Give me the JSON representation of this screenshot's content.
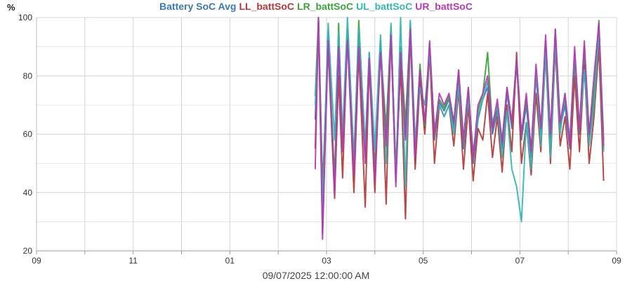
{
  "chart_data": {
    "type": "line",
    "ylabel": "%",
    "ylim": [
      20,
      100
    ],
    "yticks": [
      20,
      40,
      60,
      80,
      100
    ],
    "xlim": [
      0,
      72
    ],
    "xticks": [
      {
        "x": 0,
        "label": "09"
      },
      {
        "x": 6,
        "label": ""
      },
      {
        "x": 12,
        "label": "11"
      },
      {
        "x": 18,
        "label": ""
      },
      {
        "x": 24,
        "label": "01"
      },
      {
        "x": 30,
        "label": ""
      },
      {
        "x": 36,
        "label": "03"
      },
      {
        "x": 42,
        "label": ""
      },
      {
        "x": 48,
        "label": "05"
      },
      {
        "x": 54,
        "label": ""
      },
      {
        "x": 60,
        "label": "07"
      },
      {
        "x": 66,
        "label": ""
      },
      {
        "x": 72,
        "label": "09"
      }
    ],
    "xlabel": "09/07/2025 12:00:00 AM",
    "grid": true,
    "legend_position": "top-center",
    "series": [
      {
        "name": "Battery SoC Avg",
        "color": "#3a78b5",
        "x": [
          34.6,
          35.0,
          35.5,
          36.2,
          37.0,
          37.5,
          38.0,
          38.6,
          39.4,
          40.0,
          40.8,
          41.3,
          42.0,
          42.7,
          43.4,
          44.0,
          44.6,
          45.2,
          45.8,
          46.4,
          47.0,
          47.6,
          48.2,
          48.8,
          49.4,
          50.0,
          50.6,
          51.2,
          51.8,
          52.4,
          53.0,
          53.6,
          54.2,
          54.8,
          55.4,
          56.0,
          56.6,
          57.2,
          57.8,
          58.4,
          59.0,
          59.6,
          60.2,
          60.8,
          61.4,
          62.0,
          62.6,
          63.2,
          63.8,
          64.4,
          65.0,
          65.6,
          66.2,
          66.8,
          67.4,
          68.0,
          68.6,
          69.2,
          69.8,
          70.4
        ],
        "y": [
          65,
          99,
          38,
          95,
          42,
          88,
          55,
          96,
          48,
          92,
          52,
          86,
          45,
          90,
          58,
          93,
          44,
          85,
          60,
          98,
          50,
          80,
          62,
          90,
          58,
          71,
          68,
          72,
          62,
          80,
          55,
          73,
          50,
          65,
          72,
          76,
          60,
          68,
          55,
          74,
          62,
          84,
          58,
          70,
          52,
          80,
          60,
          92,
          58,
          96,
          62,
          70,
          55,
          85,
          60,
          88,
          58,
          72,
          95,
          55
        ]
      },
      {
        "name": "LL_battSoC",
        "color": "#b23a3a",
        "x": [
          34.6,
          35.0,
          35.5,
          36.2,
          37.0,
          37.5,
          38.0,
          38.6,
          39.4,
          40.0,
          40.8,
          41.3,
          42.0,
          42.7,
          43.4,
          44.0,
          44.6,
          45.2,
          45.8,
          46.4,
          47.0,
          47.6,
          48.2,
          48.8,
          49.4,
          50.0,
          50.6,
          51.2,
          51.8,
          52.4,
          53.0,
          53.6,
          54.2,
          54.8,
          55.4,
          56.0,
          56.6,
          57.2,
          57.8,
          58.4,
          59.0,
          59.6,
          60.2,
          60.8,
          61.4,
          62.0,
          62.6,
          63.2,
          63.8,
          64.4,
          65.0,
          65.6,
          66.2,
          66.8,
          67.4,
          68.0,
          68.6,
          69.2,
          69.8,
          70.4
        ],
        "y": [
          55,
          100,
          42,
          90,
          38,
          80,
          45,
          94,
          40,
          88,
          35,
          84,
          40,
          92,
          36,
          96,
          48,
          83,
          31,
          95,
          48,
          78,
          60,
          88,
          50,
          70,
          66,
          70,
          56,
          75,
          48,
          70,
          44,
          62,
          58,
          74,
          52,
          66,
          47,
          70,
          54,
          88,
          50,
          64,
          46,
          74,
          54,
          88,
          50,
          90,
          56,
          66,
          48,
          80,
          54,
          84,
          50,
          66,
          90,
          44
        ]
      },
      {
        "name": "LR_battSoC",
        "color": "#3aa33a",
        "x": [
          34.6,
          35.0,
          35.5,
          36.2,
          37.0,
          37.5,
          38.0,
          38.6,
          39.4,
          40.0,
          40.8,
          41.3,
          42.0,
          42.7,
          43.4,
          44.0,
          44.6,
          45.2,
          45.8,
          46.4,
          47.0,
          47.6,
          48.2,
          48.8,
          49.4,
          50.0,
          50.6,
          51.2,
          51.8,
          52.4,
          53.0,
          53.6,
          54.2,
          54.8,
          55.4,
          56.0,
          56.6,
          57.2,
          57.8,
          58.4,
          59.0,
          59.6,
          60.2,
          60.8,
          61.4,
          62.0,
          62.6,
          63.2,
          63.8,
          64.4,
          65.0,
          65.6,
          66.2,
          66.8,
          67.4,
          68.0,
          68.6,
          69.2,
          69.8,
          70.4
        ],
        "y": [
          73,
          100,
          26,
          92,
          45,
          98,
          56,
          94,
          50,
          99,
          55,
          88,
          48,
          90,
          62,
          97,
          47,
          90,
          64,
          97,
          55,
          84,
          63,
          91,
          60,
          72,
          69,
          73,
          64,
          82,
          58,
          76,
          52,
          68,
          74,
          88,
          62,
          70,
          58,
          76,
          64,
          86,
          60,
          72,
          55,
          82,
          62,
          90,
          60,
          94,
          64,
          72,
          57,
          86,
          62,
          90,
          60,
          75,
          99,
          58
        ]
      },
      {
        "name": "UL_battSoC",
        "color": "#33b5b5",
        "x": [
          34.6,
          35.0,
          35.5,
          36.2,
          37.0,
          37.5,
          38.0,
          38.6,
          39.4,
          40.0,
          40.8,
          41.3,
          42.0,
          42.7,
          43.4,
          44.0,
          44.6,
          45.2,
          45.8,
          46.4,
          47.0,
          47.6,
          48.2,
          48.8,
          49.4,
          50.0,
          50.6,
          51.2,
          51.8,
          52.4,
          53.0,
          53.6,
          54.2,
          54.8,
          55.4,
          56.0,
          56.6,
          57.2,
          57.8,
          58.4,
          59.0,
          59.6,
          60.2,
          60.8,
          61.4,
          62.0,
          62.6,
          63.2,
          63.8,
          64.4,
          65.0,
          65.6,
          66.2,
          66.8,
          67.4,
          68.0,
          68.6,
          69.2,
          69.8,
          70.4
        ],
        "y": [
          70,
          96,
          36,
          98,
          58,
          95,
          60,
          100,
          52,
          96,
          56,
          88,
          55,
          94,
          50,
          98,
          44,
          100,
          42,
          99,
          58,
          76,
          70,
          88,
          62,
          70,
          66,
          70,
          60,
          76,
          58,
          72,
          54,
          66,
          72,
          78,
          64,
          70,
          52,
          68,
          48,
          42,
          30,
          64,
          48,
          82,
          56,
          88,
          52,
          92,
          60,
          74,
          58,
          88,
          62,
          82,
          56,
          70,
          96,
          54
        ]
      },
      {
        "name": "UR_battSoC",
        "color": "#b53ab5",
        "x": [
          34.6,
          35.0,
          35.5,
          36.2,
          37.0,
          37.5,
          38.0,
          38.6,
          39.4,
          40.0,
          40.8,
          41.3,
          42.0,
          42.7,
          43.4,
          44.0,
          44.6,
          45.2,
          45.8,
          46.4,
          47.0,
          47.6,
          48.2,
          48.8,
          49.4,
          50.0,
          50.6,
          51.2,
          51.8,
          52.4,
          53.0,
          53.6,
          54.2,
          54.8,
          55.4,
          56.0,
          56.6,
          57.2,
          57.8,
          58.4,
          59.0,
          59.6,
          60.2,
          60.8,
          61.4,
          62.0,
          62.6,
          63.2,
          63.8,
          64.4,
          65.0,
          65.6,
          66.2,
          66.8,
          67.4,
          68.0,
          68.6,
          69.2,
          69.8,
          70.4
        ],
        "y": [
          48,
          100,
          24,
          92,
          40,
          90,
          54,
          92,
          46,
          90,
          50,
          86,
          44,
          88,
          56,
          94,
          42,
          88,
          58,
          96,
          52,
          82,
          64,
          92,
          60,
          74,
          70,
          74,
          64,
          82,
          58,
          76,
          52,
          70,
          74,
          80,
          62,
          72,
          57,
          76,
          64,
          86,
          60,
          74,
          54,
          84,
          62,
          94,
          60,
          96,
          64,
          74,
          56,
          90,
          62,
          92,
          60,
          80,
          98,
          56
        ]
      }
    ]
  }
}
